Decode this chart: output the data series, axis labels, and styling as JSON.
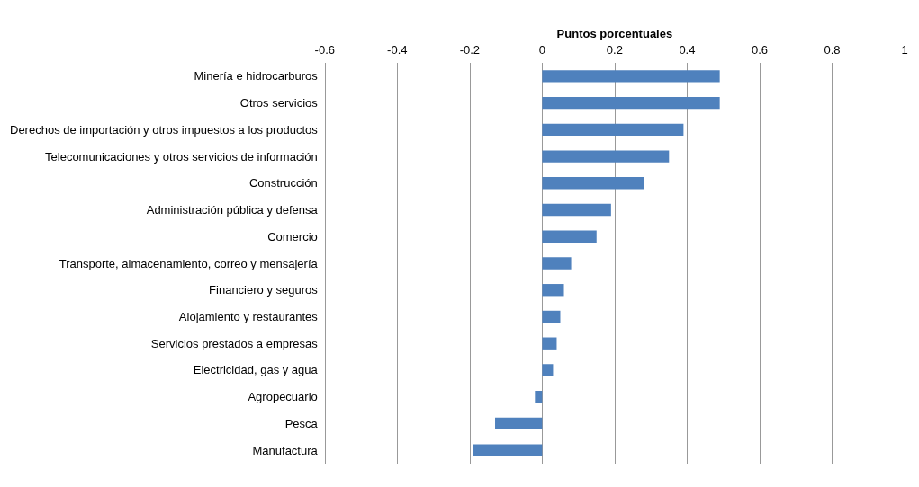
{
  "chart_data": {
    "type": "bar",
    "orientation": "horizontal",
    "xlabel": "Puntos porcentuales",
    "categories": [
      "Minería e hidrocarburos",
      "Otros servicios",
      "Derechos de importación y otros impuestos a los productos",
      "Telecomunicaciones y otros servicios de información",
      "Construcción",
      "Administración pública y defensa",
      "Comercio",
      "Transporte, almacenamiento, correo y mensajería",
      "Financiero y seguros",
      "Alojamiento y restaurantes",
      "Servicios prestados a empresas",
      "Electricidad, gas y agua",
      "Agropecuario",
      "Pesca",
      "Manufactura"
    ],
    "values": [
      0.49,
      0.49,
      0.39,
      0.35,
      0.28,
      0.19,
      0.15,
      0.08,
      0.06,
      0.05,
      0.04,
      0.03,
      -0.02,
      -0.13,
      -0.19
    ],
    "color": "#4f81bd",
    "xlim": [
      -0.6,
      1
    ],
    "xticks": [
      -0.6,
      -0.4,
      -0.2,
      0,
      0.2,
      0.4,
      0.6,
      0.8,
      1
    ],
    "grid": "x"
  }
}
